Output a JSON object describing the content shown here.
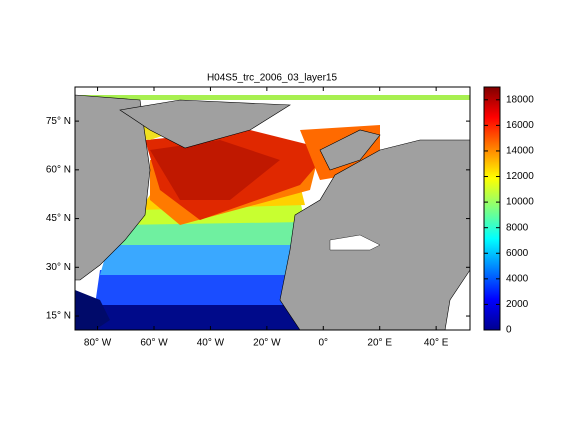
{
  "title": "H04S5_trc_2006_03_layer15",
  "map": {
    "xlim": [
      -88,
      52
    ],
    "ylim": [
      10.7,
      85.5
    ],
    "xticks": [
      {
        "value": -80,
        "label": "80° W"
      },
      {
        "value": -60,
        "label": "60° W"
      },
      {
        "value": -40,
        "label": "40° W"
      },
      {
        "value": -20,
        "label": "20° W"
      },
      {
        "value": 0,
        "label": "0°"
      },
      {
        "value": 20,
        "label": "20° E"
      },
      {
        "value": 40,
        "label": "40° E"
      }
    ],
    "yticks": [
      {
        "value": 15,
        "label": "15° N"
      },
      {
        "value": 30,
        "label": "30° N"
      },
      {
        "value": 45,
        "label": "45° N"
      },
      {
        "value": 60,
        "label": "60° N"
      },
      {
        "value": 75,
        "label": "75° N"
      }
    ]
  },
  "colorbar": {
    "clim": [
      0,
      19000
    ],
    "ticks": [
      0,
      2000,
      4000,
      6000,
      8000,
      10000,
      12000,
      14000,
      16000,
      18000
    ]
  }
}
